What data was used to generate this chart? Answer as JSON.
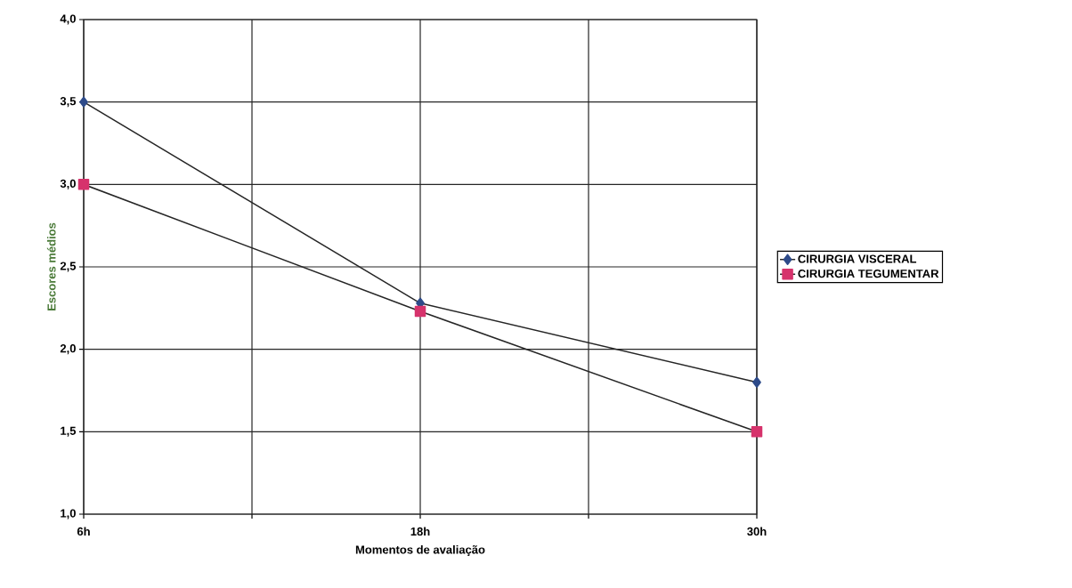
{
  "chart_data": {
    "type": "line",
    "xlabel": "Momentos de avaliação",
    "ylabel": "Escores médios",
    "x": [
      6,
      18,
      30
    ],
    "series": [
      {
        "name": "CIRURGIA VISCERAL",
        "color": "#2e4b8a",
        "marker": "diamond",
        "values": [
          3.5,
          2.28,
          1.8
        ]
      },
      {
        "name": "CIRURGIA TEGUMENTAR",
        "color": "#d6336c",
        "marker": "square",
        "values": [
          3.0,
          2.23,
          1.5
        ]
      }
    ],
    "xlim": [
      6,
      30
    ],
    "xticks": [
      {
        "value": 6,
        "label": "6h"
      },
      {
        "value": 12,
        "label": null
      },
      {
        "value": 18,
        "label": "18h"
      },
      {
        "value": 24,
        "label": null
      },
      {
        "value": 30,
        "label": "30h"
      }
    ],
    "ylim": [
      1.0,
      4.0
    ],
    "yticks": [
      {
        "value": 1.0,
        "label": "1,0"
      },
      {
        "value": 1.5,
        "label": "1,5"
      },
      {
        "value": 2.0,
        "label": "2,0"
      },
      {
        "value": 2.5,
        "label": "2,5"
      },
      {
        "value": 3.0,
        "label": "3,0"
      },
      {
        "value": 3.5,
        "label": "3,5"
      },
      {
        "value": 4.0,
        "label": "4,0"
      }
    ],
    "grid": true,
    "legend": "right",
    "line_style": "solid"
  }
}
